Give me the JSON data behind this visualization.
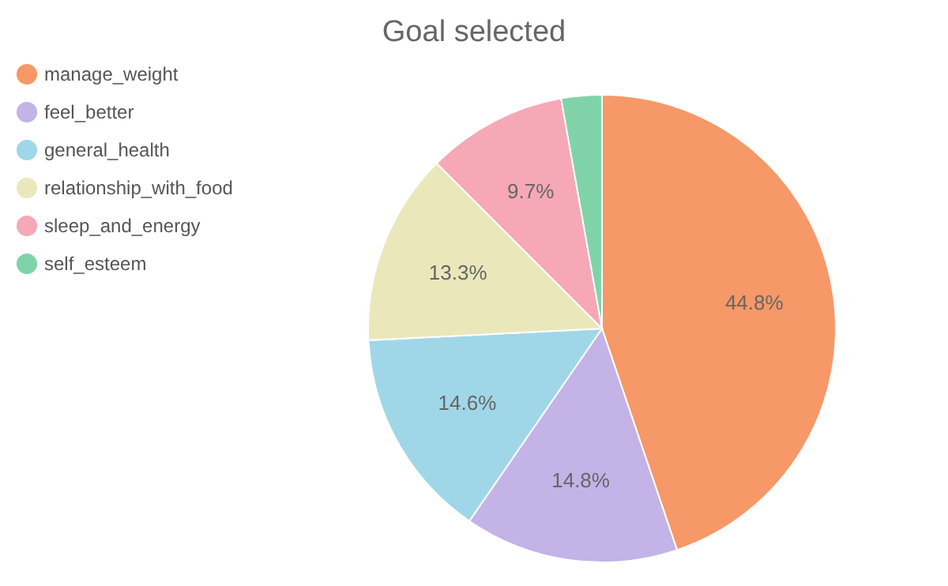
{
  "chart_data": {
    "type": "pie",
    "title": "Goal selected",
    "categories": [
      "manage_weight",
      "feel_better",
      "general_health",
      "relationship_with_food",
      "sleep_and_energy",
      "self_esteem"
    ],
    "values": [
      44.8,
      14.8,
      14.6,
      13.3,
      9.7,
      2.8
    ],
    "colors": [
      "#f79868",
      "#c3b3e7",
      "#a0d7e8",
      "#eae8bb",
      "#f6a8b6",
      "#80d3a8"
    ],
    "value_labels": [
      "44.8%",
      "14.8%",
      "14.6%",
      "13.3%",
      "9.7%",
      null
    ],
    "legend": "left"
  }
}
